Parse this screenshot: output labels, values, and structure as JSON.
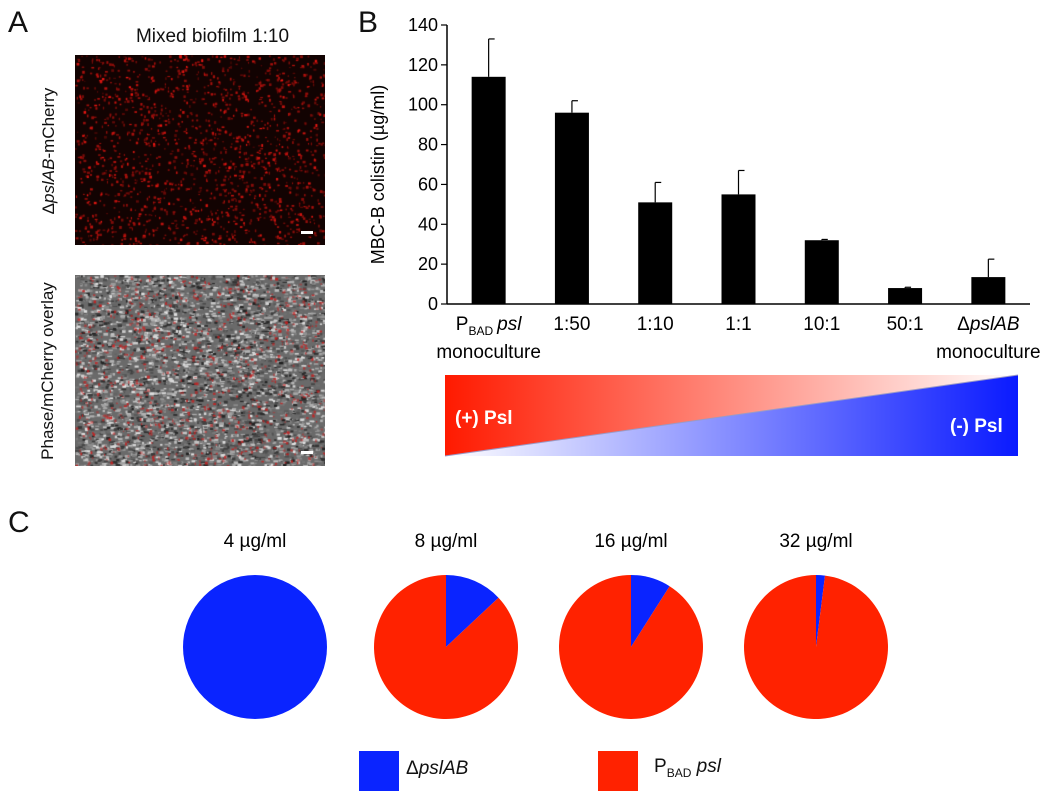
{
  "panel_a": {
    "letter": "A",
    "title": "Mixed biofilm 1:10",
    "top_label_delta": "Δ",
    "top_label_italic": "pslAB",
    "top_label_rest": "-mCherry",
    "bottom_label": "Phase/mCherry overlay"
  },
  "panel_b": {
    "letter": "B",
    "gradient": {
      "left_label": "(+) Psl",
      "right_label": "(-) Psl",
      "colors": {
        "red": "#ff1a00",
        "blue": "#0a1aff"
      }
    }
  },
  "panel_c": {
    "letter": "C"
  },
  "legend": {
    "item1_delta": "Δ",
    "item1_italic": "pslAB",
    "item1_color": "#0a24ff",
    "item2_p": "P",
    "item2_sub": "BAD",
    "item2_italic": "psl",
    "item2_color": "#ff2200"
  },
  "chart_data": [
    {
      "type": "bar",
      "ylabel": "MBC-B colistin (µg/ml)",
      "ylim": [
        0,
        140
      ],
      "yticks": [
        "0",
        "20",
        "40",
        "60",
        "80",
        "100",
        "120",
        "140"
      ],
      "categories": [
        {
          "line1_prefix": "P",
          "line1_sub": "BAD",
          "line1_italic": "psl",
          "line2": "monoculture"
        },
        {
          "line1": "1:50"
        },
        {
          "line1": "1:10"
        },
        {
          "line1": "1:1"
        },
        {
          "line1": "10:1"
        },
        {
          "line1": "50:1"
        },
        {
          "line1_prefix": "Δ",
          "line1_italic": "pslAB",
          "line2": "monoculture"
        }
      ],
      "values": [
        114,
        96,
        51,
        55,
        32,
        8,
        13.5
      ],
      "errors": [
        19,
        6,
        10,
        12,
        0.4,
        0.4,
        9
      ],
      "bar_color": "#000000"
    },
    {
      "type": "pie",
      "charts": [
        {
          "title": "4 µg/ml",
          "slices": [
            {
              "series": "ΔpslAB",
              "value": 100
            },
            {
              "series": "PBAD psl",
              "value": 0
            }
          ]
        },
        {
          "title": "8 µg/ml",
          "slices": [
            {
              "series": "ΔpslAB",
              "value": 13
            },
            {
              "series": "PBAD psl",
              "value": 87
            }
          ]
        },
        {
          "title": "16 µg/ml",
          "slices": [
            {
              "series": "ΔpslAB",
              "value": 9
            },
            {
              "series": "PBAD psl",
              "value": 91
            }
          ]
        },
        {
          "title": "32 µg/ml",
          "slices": [
            {
              "series": "ΔpslAB",
              "value": 2
            },
            {
              "series": "PBAD psl",
              "value": 98
            }
          ]
        }
      ],
      "colors": {
        "ΔpslAB": "#0a24ff",
        "PBAD psl": "#ff2200"
      }
    }
  ]
}
